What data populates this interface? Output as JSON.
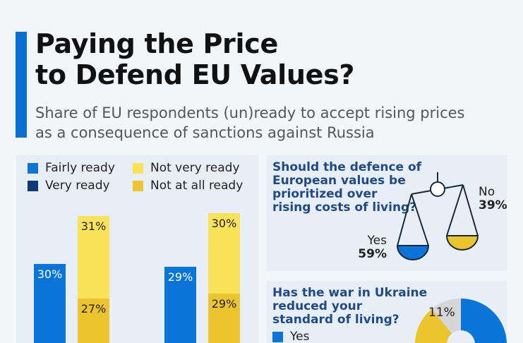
{
  "title_line1": "Paying the Price",
  "title_line2": "to Defend EU Values?",
  "subtitle_line1": "Share of EU respondents (un)ready to accept rising prices",
  "subtitle_line2": "as a consequence of sanctions against Russia",
  "colors": {
    "fairly_ready": "#0a74d8",
    "very_ready": "#0d3a7a",
    "not_very_ready": "#fae359",
    "not_at_all_ready": "#ebc42e",
    "accent": "#0a6fd4",
    "gray": "#d6d6d6"
  },
  "chart_data": [
    {
      "type": "bar",
      "stacked": true,
      "legend": [
        "Fairly ready",
        "Very ready",
        "Not very ready",
        "Not at all ready"
      ],
      "legend_placement": "top",
      "groups": [
        {
          "bars": [
            {
              "segments": [
                {
                  "series": "Fairly ready",
                  "value": 30,
                  "label": "30%"
                }
              ]
            },
            {
              "segments": [
                {
                  "series": "Not at all ready",
                  "value": 27,
                  "label": "27%"
                },
                {
                  "series": "Not very ready",
                  "value": 31,
                  "label": "31%"
                }
              ]
            }
          ]
        },
        {
          "bars": [
            {
              "segments": [
                {
                  "series": "Fairly ready",
                  "value": 29,
                  "label": "29%"
                }
              ]
            },
            {
              "segments": [
                {
                  "series": "Not at all ready",
                  "value": 29,
                  "label": "29%"
                },
                {
                  "series": "Not very ready",
                  "value": 30,
                  "label": "30%"
                }
              ]
            }
          ]
        }
      ]
    },
    {
      "type": "pie",
      "title": "Should the defence of European values be prioritized over rising costs of living?",
      "slices": [
        {
          "label": "Yes",
          "value": 59,
          "text": "59%"
        },
        {
          "label": "No",
          "value": 39,
          "text": "39%"
        }
      ]
    },
    {
      "type": "pie",
      "title": "Has the war in Ukraine reduced your standard of living?",
      "legend": [
        "Yes"
      ],
      "slices": [
        {
          "label": "Yes",
          "value": 62
        },
        {
          "label": "",
          "value": 27
        },
        {
          "label": "",
          "value": 11,
          "text": "11%"
        }
      ]
    }
  ],
  "q1": {
    "line1": "Should the defence of",
    "line2": "European values be",
    "line3": "prioritized over",
    "line4": "rising costs of living?",
    "yes": "Yes",
    "yes_pct": "59%",
    "no": "No",
    "no_pct": "39%"
  },
  "q2": {
    "line1": "Has the war in Ukraine",
    "line2": "reduced your",
    "line3": "standard of living?",
    "legend_yes": "Yes",
    "gray_pct": "11%"
  }
}
